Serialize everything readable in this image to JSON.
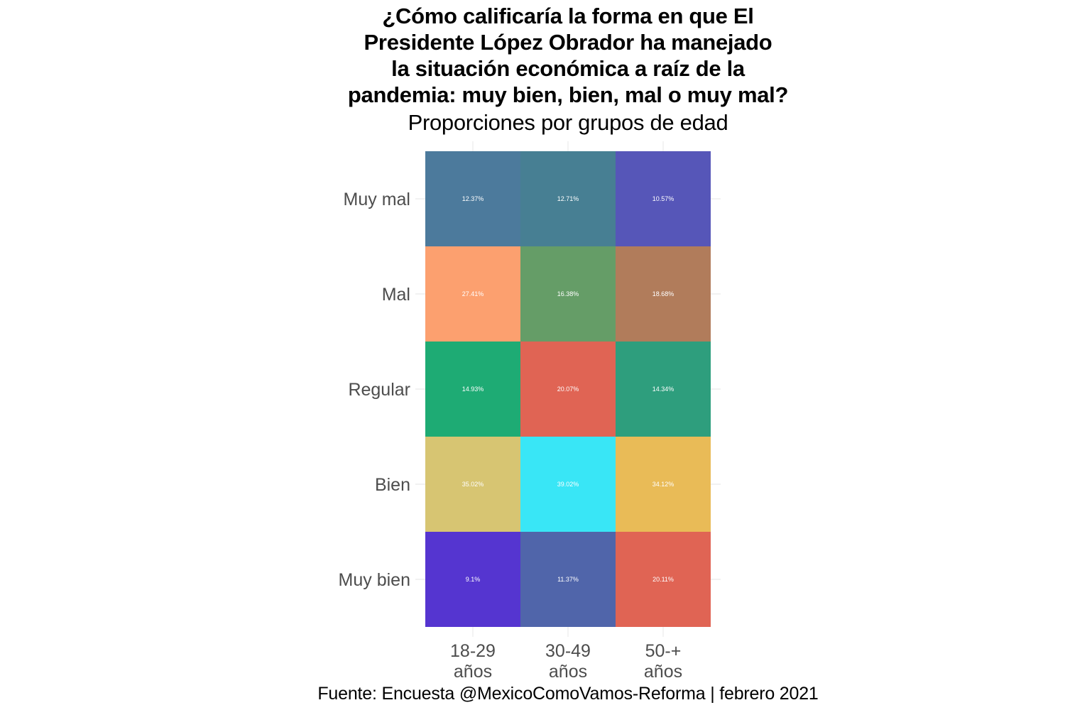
{
  "chart_data": {
    "type": "heatmap",
    "title": [
      "¿Cómo calificaría la forma en que El",
      "Presidente López Obrador ha manejado",
      "la situación económica a raíz de la",
      "pandemia: muy bien, bien, mal o muy mal?"
    ],
    "subtitle": "Proporciones por grupos de edad",
    "caption": "Fuente: Encuesta @MexicoComoVamos-Reforma | febrero 2021",
    "x_categories": [
      [
        "18-29",
        "años"
      ],
      [
        "30-49",
        "años"
      ],
      [
        "50-+",
        "años"
      ]
    ],
    "y_categories": [
      "Muy mal",
      "Mal",
      "Regular",
      "Bien",
      "Muy bien"
    ],
    "legend": "none",
    "grid": true,
    "cells": [
      [
        {
          "label": "12.37%",
          "value": 12.37,
          "color": "#4c7a9c"
        },
        {
          "label": "12.71%",
          "value": 12.71,
          "color": "#477f93"
        },
        {
          "label": "10.57%",
          "value": 10.57,
          "color": "#5656b8"
        }
      ],
      [
        {
          "label": "27.41%",
          "value": 27.41,
          "color": "#fca06f"
        },
        {
          "label": "16.38%",
          "value": 16.38,
          "color": "#659d67"
        },
        {
          "label": "18.68%",
          "value": 18.68,
          "color": "#b17c5b"
        }
      ],
      [
        {
          "label": "14.93%",
          "value": 14.93,
          "color": "#1eab74"
        },
        {
          "label": "20.07%",
          "value": 20.07,
          "color": "#e06454"
        },
        {
          "label": "14.34%",
          "value": 14.34,
          "color": "#2e9e7d"
        }
      ],
      [
        {
          "label": "35.02%",
          "value": 35.02,
          "color": "#d7c572"
        },
        {
          "label": "39.02%",
          "value": 39.02,
          "color": "#39e6f6"
        },
        {
          "label": "34.12%",
          "value": 34.12,
          "color": "#e9bb57"
        }
      ],
      [
        {
          "label": "9.1%",
          "value": 9.1,
          "color": "#5535d0"
        },
        {
          "label": "11.37%",
          "value": 11.37,
          "color": "#5065aa"
        },
        {
          "label": "20.11%",
          "value": 20.11,
          "color": "#e06454"
        }
      ]
    ]
  }
}
